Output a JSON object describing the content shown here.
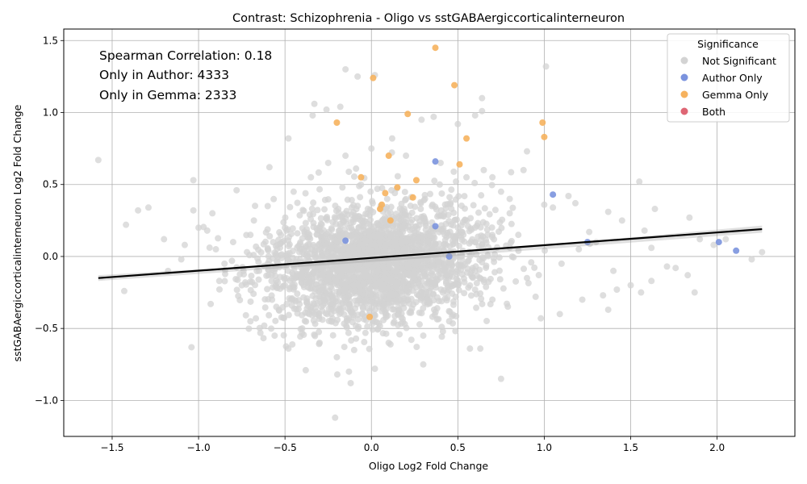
{
  "chart_data": {
    "type": "scatter",
    "title": "Contrast: Schizophrenia - Oligo vs sstGABAergiccorticalinterneuron",
    "xlabel": "Oligo Log2 Fold Change",
    "ylabel": "sstGABAergiccorticalinterneuron Log2 Fold Change",
    "xlim": [
      -1.78,
      2.45
    ],
    "ylim": [
      -1.25,
      1.58
    ],
    "xticks": [
      -1.5,
      -1.0,
      -0.5,
      0.0,
      0.5,
      1.0,
      1.5,
      2.0
    ],
    "xtick_labels": [
      "−1.5",
      "−1.0",
      "−0.5",
      "0.0",
      "0.5",
      "1.0",
      "1.5",
      "2.0"
    ],
    "yticks": [
      -1.0,
      -0.5,
      0.0,
      0.5,
      1.0,
      1.5
    ],
    "ytick_labels": [
      "−1.0",
      "−0.5",
      "0.0",
      "0.5",
      "1.0",
      "1.5"
    ],
    "grid": true,
    "annotations": [
      "Spearman Correlation: 0.18",
      "Only in Author: 4333",
      "Only in Gemma: 2333"
    ],
    "legend": {
      "title": "Significance",
      "placement": "top-right",
      "entries": [
        {
          "label": "Not Significant",
          "color": "#d3d3d3"
        },
        {
          "label": "Author Only",
          "color": "#7b93de"
        },
        {
          "label": "Gemma Only",
          "color": "#f6b25e"
        },
        {
          "label": "Both",
          "color": "#de6674"
        }
      ]
    },
    "regression": {
      "x": [
        -1.58,
        2.26
      ],
      "y": [
        -0.15,
        0.19
      ],
      "color": "#000000"
    },
    "series": [
      {
        "name": "Not Significant",
        "color": "#d3d3d3",
        "points": [
          [
            -1.58,
            0.67
          ],
          [
            -1.42,
            0.22
          ],
          [
            -1.43,
            -0.24
          ],
          [
            -1.35,
            0.32
          ],
          [
            -1.29,
            0.34
          ],
          [
            -1.03,
            0.53
          ],
          [
            -1.03,
            0.32
          ],
          [
            -0.92,
            0.3
          ],
          [
            -0.93,
            -0.33
          ],
          [
            -0.88,
            -0.17
          ],
          [
            -0.78,
            0.46
          ],
          [
            -0.72,
            0.03
          ],
          [
            -0.7,
            -0.45
          ],
          [
            -0.68,
            0.25
          ],
          [
            -0.59,
            0.62
          ],
          [
            -0.62,
            -0.48
          ],
          [
            -0.56,
            -0.55
          ],
          [
            -0.48,
            -0.64
          ],
          [
            -0.48,
            0.82
          ],
          [
            -0.38,
            -0.79
          ],
          [
            -0.34,
            0.98
          ],
          [
            -0.33,
            1.06
          ],
          [
            -0.26,
            1.02
          ],
          [
            -0.18,
            1.04
          ],
          [
            -0.15,
            1.3
          ],
          [
            -0.08,
            1.25
          ],
          [
            0.02,
            1.26
          ],
          [
            -0.21,
            -1.12
          ],
          [
            -0.12,
            -0.88
          ],
          [
            -0.13,
            -0.8
          ],
          [
            0.02,
            -0.78
          ],
          [
            0.3,
            -0.75
          ],
          [
            0.57,
            -0.64
          ],
          [
            0.63,
            -0.64
          ],
          [
            0.75,
            -0.85
          ],
          [
            0.64,
            1.1
          ],
          [
            0.64,
            1.01
          ],
          [
            0.6,
            0.98
          ],
          [
            0.5,
            0.92
          ],
          [
            0.36,
            0.97
          ],
          [
            0.29,
            0.95
          ],
          [
            0.12,
            0.82
          ],
          [
            0.88,
            0.6
          ],
          [
            0.9,
            0.73
          ],
          [
            1.01,
            1.32
          ],
          [
            1.05,
            0.34
          ],
          [
            1.14,
            0.42
          ],
          [
            1.18,
            0.37
          ],
          [
            1.26,
            0.17
          ],
          [
            1.37,
            0.31
          ],
          [
            1.45,
            0.25
          ],
          [
            1.55,
            0.52
          ],
          [
            1.58,
            0.18
          ],
          [
            1.64,
            0.33
          ],
          [
            1.62,
            0.06
          ],
          [
            1.71,
            -0.07
          ],
          [
            1.76,
            -0.08
          ],
          [
            1.62,
            -0.17
          ],
          [
            1.56,
            -0.25
          ],
          [
            1.5,
            -0.2
          ],
          [
            1.37,
            -0.37
          ],
          [
            1.42,
            -0.23
          ],
          [
            1.34,
            -0.27
          ],
          [
            1.22,
            -0.3
          ],
          [
            1.09,
            -0.4
          ],
          [
            0.98,
            -0.43
          ],
          [
            0.95,
            -0.28
          ],
          [
            1.84,
            0.27
          ],
          [
            1.83,
            -0.13
          ],
          [
            1.87,
            -0.25
          ],
          [
            1.9,
            0.12
          ],
          [
            2.2,
            -0.02
          ],
          [
            2.26,
            0.03
          ],
          [
            2.05,
            0.12
          ],
          [
            1.98,
            0.08
          ],
          [
            1.2,
            0.05
          ],
          [
            1.1,
            -0.05
          ],
          [
            1.3,
            0.1
          ],
          [
            1.4,
            -0.1
          ],
          [
            0.85,
            0.15
          ],
          [
            0.9,
            -0.15
          ],
          [
            0.8,
            0.3
          ],
          [
            0.7,
            -0.3
          ],
          [
            0.75,
            0.45
          ],
          [
            0.7,
            0.55
          ],
          [
            0.8,
            0.4
          ],
          [
            0.65,
            0.6
          ],
          [
            -0.8,
            0.1
          ],
          [
            -0.85,
            -0.05
          ],
          [
            -0.9,
            0.05
          ],
          [
            -0.75,
            -0.2
          ],
          [
            -0.7,
            0.15
          ],
          [
            -0.65,
            -0.1
          ],
          [
            -0.6,
            0.35
          ],
          [
            -0.55,
            -0.35
          ],
          [
            -0.45,
            0.45
          ],
          [
            -0.4,
            -0.5
          ],
          [
            -0.35,
            0.55
          ],
          [
            -0.3,
            -0.6
          ],
          [
            -0.25,
            0.65
          ],
          [
            -0.2,
            -0.7
          ],
          [
            -0.15,
            0.7
          ],
          [
            -0.1,
            -0.65
          ],
          [
            0.0,
            0.75
          ],
          [
            0.1,
            -0.6
          ],
          [
            0.2,
            0.7
          ],
          [
            0.3,
            -0.55
          ],
          [
            0.4,
            0.65
          ],
          [
            0.45,
            -0.45
          ],
          [
            0.55,
            0.55
          ],
          [
            -1.2,
            0.12
          ],
          [
            -1.1,
            -0.02
          ],
          [
            -1.0,
            0.2
          ],
          [
            -0.95,
            0.18
          ],
          [
            -1.08,
            0.08
          ],
          [
            -0.5,
            0.2
          ],
          [
            -0.5,
            -0.2
          ],
          [
            0.5,
            0.2
          ],
          [
            0.5,
            -0.2
          ],
          [
            0.6,
            0.1
          ],
          [
            0.6,
            -0.1
          ],
          [
            -0.6,
            0.05
          ],
          [
            -0.6,
            -0.05
          ],
          [
            0.35,
            0.35
          ],
          [
            -0.35,
            -0.35
          ]
        ],
        "cloud": {
          "center_x": 0.02,
          "center_y": -0.05,
          "sd_x": 0.26,
          "sd_y": 0.2,
          "note_count_visible": "dense"
        }
      },
      {
        "name": "Author Only",
        "color": "#7b93de",
        "points": [
          [
            0.37,
            0.66
          ],
          [
            1.05,
            0.43
          ],
          [
            1.25,
            0.1
          ],
          [
            2.01,
            0.1
          ],
          [
            2.11,
            0.04
          ],
          [
            0.45,
            0.0
          ],
          [
            0.37,
            0.21
          ],
          [
            -0.15,
            0.11
          ]
        ]
      },
      {
        "name": "Gemma Only",
        "color": "#f6b25e",
        "points": [
          [
            0.37,
            1.45
          ],
          [
            0.01,
            1.24
          ],
          [
            0.48,
            1.19
          ],
          [
            0.21,
            0.99
          ],
          [
            -0.2,
            0.93
          ],
          [
            0.99,
            0.93
          ],
          [
            0.55,
            0.82
          ],
          [
            1.0,
            0.83
          ],
          [
            0.1,
            0.7
          ],
          [
            0.51,
            0.64
          ],
          [
            -0.06,
            0.55
          ],
          [
            0.26,
            0.53
          ],
          [
            0.08,
            0.44
          ],
          [
            0.15,
            0.48
          ],
          [
            0.24,
            0.41
          ],
          [
            0.06,
            0.36
          ],
          [
            0.05,
            0.33
          ],
          [
            0.11,
            0.25
          ],
          [
            -0.01,
            -0.42
          ]
        ]
      },
      {
        "name": "Both",
        "color": "#de6674",
        "points": []
      }
    ]
  }
}
